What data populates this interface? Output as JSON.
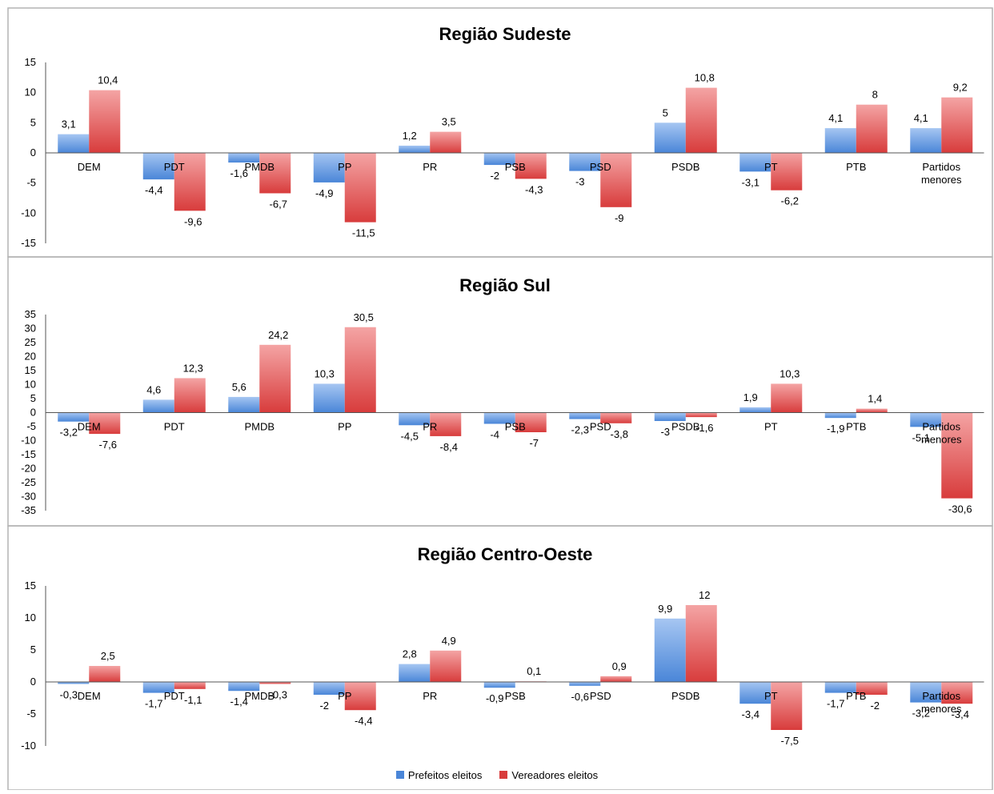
{
  "colors": {
    "series_1": "#4a86d8",
    "series_1_light": "#a6c6f2",
    "series_2": "#d83c3c",
    "series_2_light": "#f4a4a4",
    "axis": "#555555",
    "frame": "#b3b3b3"
  },
  "legend": {
    "items": [
      "Prefeitos eleitos",
      "Vereadores eleitos"
    ]
  },
  "chart_data": [
    {
      "type": "bar",
      "title": "Região Sudeste",
      "categories": [
        "DEM",
        "PDT",
        "PMDB",
        "PP",
        "PR",
        "PSB",
        "PSD",
        "PSDB",
        "PT",
        "PTB",
        "Partidos menores"
      ],
      "series": [
        {
          "name": "Prefeitos eleitos",
          "values": [
            3.1,
            -4.4,
            -1.6,
            -4.9,
            1.2,
            -2,
            -3,
            5,
            -3.1,
            4.1,
            4.1
          ],
          "labels": [
            "3,1",
            "-4,4",
            "-1,6",
            "-4,9",
            "1,2",
            "-2",
            "-3",
            "5",
            "-3,1",
            "4,1",
            "4,1"
          ]
        },
        {
          "name": "Vereadores eleitos",
          "values": [
            10.4,
            -9.6,
            -6.7,
            -11.5,
            3.5,
            -4.3,
            -9,
            10.8,
            -6.2,
            8,
            9.2
          ],
          "labels": [
            "10,4",
            "-9,6",
            "-6,7",
            "-11,5",
            "3,5",
            "-4,3",
            "-9",
            "10,8",
            "-6,2",
            "8",
            "9,2"
          ]
        }
      ],
      "ylim": [
        -15,
        15
      ],
      "yticks": [
        15,
        10,
        5,
        0,
        -5,
        -10,
        -15
      ],
      "grid": false
    },
    {
      "type": "bar",
      "title": "Região Sul",
      "categories": [
        "DEM",
        "PDT",
        "PMDB",
        "PP",
        "PR",
        "PSB",
        "PSD",
        "PSDB",
        "PT",
        "PTB",
        "Partidos menores"
      ],
      "series": [
        {
          "name": "Prefeitos eleitos",
          "values": [
            -3.2,
            4.6,
            5.6,
            10.3,
            -4.5,
            -4,
            -2.3,
            -3,
            1.9,
            -1.9,
            -5.1
          ],
          "labels": [
            "-3,2",
            "4,6",
            "5,6",
            "10,3",
            "-4,5",
            "-4",
            "-2,3",
            "-3",
            "1,9",
            "-1,9",
            "-5,1"
          ]
        },
        {
          "name": "Vereadores eleitos",
          "values": [
            -7.6,
            12.3,
            24.2,
            30.5,
            -8.4,
            -7,
            -3.8,
            -1.6,
            10.3,
            1.4,
            -30.6
          ],
          "labels": [
            "-7,6",
            "12,3",
            "24,2",
            "30,5",
            "-8,4",
            "-7",
            "-3,8",
            "-1,6",
            "10,3",
            "1,4",
            "-30,6"
          ]
        }
      ],
      "ylim": [
        -35,
        35
      ],
      "yticks": [
        35,
        30,
        25,
        20,
        15,
        10,
        5,
        0,
        -5,
        -10,
        -15,
        -20,
        -25,
        -30,
        -35
      ],
      "grid": false
    },
    {
      "type": "bar",
      "title": "Região Centro-Oeste",
      "categories": [
        "DEM",
        "PDT",
        "PMDB",
        "PP",
        "PR",
        "PSB",
        "PSD",
        "PSDB",
        "PT",
        "PTB",
        "Partidos menores"
      ],
      "series": [
        {
          "name": "Prefeitos eleitos",
          "values": [
            -0.3,
            -1.7,
            -1.4,
            -2,
            2.8,
            -0.9,
            -0.6,
            9.9,
            -3.4,
            -1.7,
            -3.2
          ],
          "labels": [
            "-0,3",
            "-1,7",
            "-1,4",
            "-2",
            "2,8",
            "-0,9",
            "-0,6",
            "9,9",
            "-3,4",
            "-1,7",
            "-3,2"
          ]
        },
        {
          "name": "Vereadores eleitos",
          "values": [
            2.5,
            -1.1,
            -0.3,
            -4.4,
            4.9,
            0.1,
            0.9,
            12,
            -7.5,
            -2,
            -3.4
          ],
          "labels": [
            "2,5",
            "-1,1",
            "-0,3",
            "-4,4",
            "4,9",
            "0,1",
            "0,9",
            "12",
            "-7,5",
            "-2",
            "-3,4"
          ]
        }
      ],
      "ylim": [
        -10,
        15
      ],
      "yticks": [
        15,
        10,
        5,
        0,
        -5,
        -10
      ],
      "grid": false
    }
  ]
}
